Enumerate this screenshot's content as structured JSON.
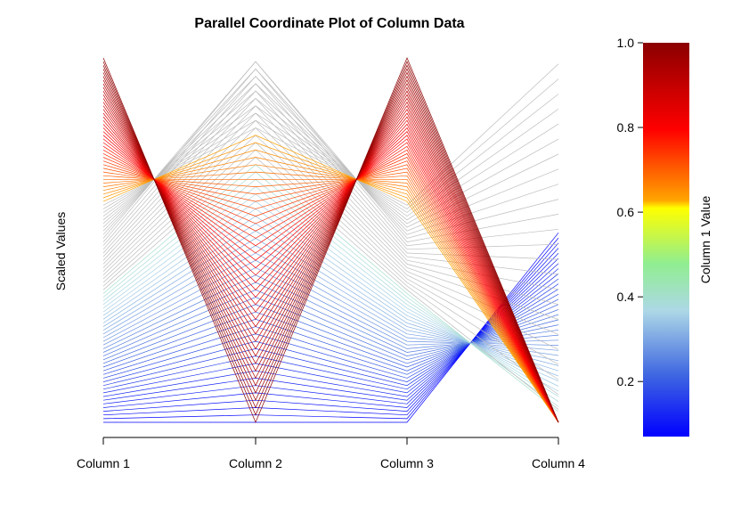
{
  "chart_data": {
    "type": "parallel-coordinates",
    "title": "Parallel Coordinate Plot of Column Data",
    "ylabel": "Scaled Values",
    "axes": [
      "Column 1",
      "Column 2",
      "Column 3",
      "Column 4"
    ],
    "n_lines": 100,
    "color_by": "Column 1",
    "colorbar": {
      "label": "Column 1 Value",
      "ticks": [
        "0.2",
        "0.4",
        "0.6",
        "0.8",
        "1.0"
      ],
      "range": [
        0.07,
        1.0
      ],
      "stops": [
        "#0000ff",
        "#4169e1",
        "#add8e6",
        "#90ee90",
        "#ffff00",
        "#ffa500",
        "#ff0000",
        "#8b0000"
      ]
    },
    "line_groups": [
      {
        "col1_range": [
          0.07,
          0.36
        ],
        "col2_range": [
          0.0,
          1.0
        ],
        "col3_range": [
          0.07,
          0.36
        ],
        "col4_range": [
          0.0,
          0.5
        ],
        "color": "blue"
      },
      {
        "col1_range": [
          0.36,
          0.63
        ],
        "col2_range": [
          0.0,
          1.0
        ],
        "col3_range": [
          0.36,
          0.63
        ],
        "col4_range": [
          0.0,
          1.0
        ],
        "color": "lightgray"
      },
      {
        "col1_range": [
          0.63,
          1.0
        ],
        "col2_range": [
          0.25,
          1.0
        ],
        "col3_range": [
          0.63,
          1.0
        ],
        "col4_range": [
          0.0,
          0.0
        ],
        "color": "yellow-red"
      }
    ]
  }
}
